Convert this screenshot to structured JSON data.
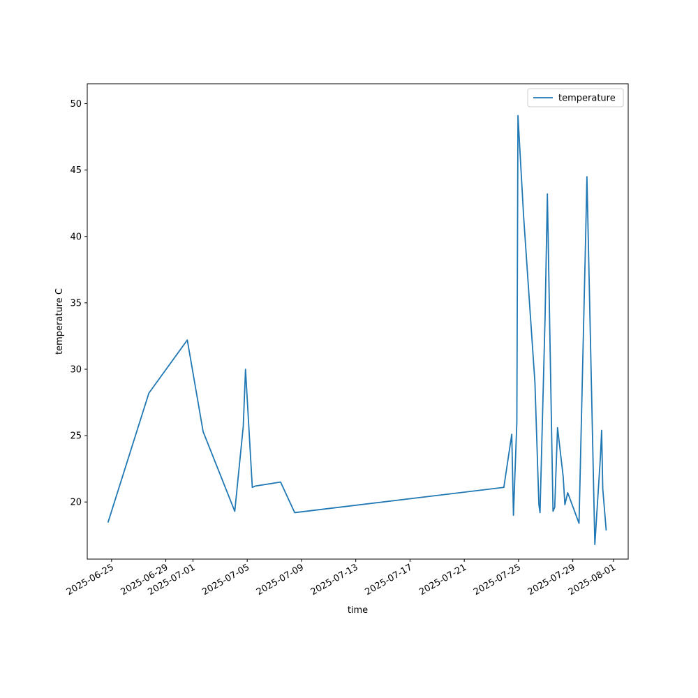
{
  "chart_data": {
    "type": "line",
    "title": "",
    "xlabel": "time",
    "ylabel": "temperature C",
    "x_tick_labels": [
      "2025-06-25",
      "2025-06-29",
      "2025-07-01",
      "2025-07-05",
      "2025-07-09",
      "2025-07-13",
      "2025-07-17",
      "2025-07-21",
      "2025-07-25",
      "2025-07-29",
      "2025-08-01"
    ],
    "x_ticks": [
      "2025-06-25",
      "2025-06-29",
      "2025-07-01",
      "2025-07-05",
      "2025-07-09",
      "2025-07-13",
      "2025-07-17",
      "2025-07-21",
      "2025-07-25",
      "2025-07-29",
      "2025-08-01"
    ],
    "xlim": [
      "2025-06-23T05:00",
      "2025-08-02T02:00"
    ],
    "ylim": [
      15.7,
      51.5
    ],
    "y_ticks": [
      20,
      25,
      30,
      35,
      40,
      45,
      50
    ],
    "legend": {
      "position": "top-right",
      "entries": [
        "temperature"
      ]
    },
    "colors": {
      "series": "#1f77b4"
    },
    "series": [
      {
        "name": "temperature",
        "points": [
          [
            "2025-06-24T18:00",
            18.5
          ],
          [
            "2025-06-27T18:00",
            28.2
          ],
          [
            "2025-06-30T14:00",
            32.2
          ],
          [
            "2025-07-01T18:00",
            25.3
          ],
          [
            "2025-07-04T02:00",
            19.3
          ],
          [
            "2025-07-04T17:00",
            25.7
          ],
          [
            "2025-07-04T21:00",
            30.0
          ],
          [
            "2025-07-05T09:00",
            21.1
          ],
          [
            "2025-07-05T14:00",
            21.2
          ],
          [
            "2025-07-07T11:00",
            21.5
          ],
          [
            "2025-07-08T12:00",
            19.2
          ],
          [
            "2025-07-23T22:00",
            21.1
          ],
          [
            "2025-07-24T12:00",
            25.1
          ],
          [
            "2025-07-24T15:00",
            19.0
          ],
          [
            "2025-07-24T21:00",
            26.0
          ],
          [
            "2025-07-24T23:00",
            49.1
          ],
          [
            "2025-07-25T09:00",
            41.5
          ],
          [
            "2025-07-26T05:00",
            29.0
          ],
          [
            "2025-07-26T12:00",
            19.8
          ],
          [
            "2025-07-26T14:00",
            19.2
          ],
          [
            "2025-07-26T23:00",
            34.0
          ],
          [
            "2025-07-27T03:00",
            43.2
          ],
          [
            "2025-07-27T13:00",
            19.3
          ],
          [
            "2025-07-27T16:00",
            19.6
          ],
          [
            "2025-07-27T21:00",
            25.6
          ],
          [
            "2025-07-28T07:00",
            21.9
          ],
          [
            "2025-07-28T10:00",
            19.8
          ],
          [
            "2025-07-28T15:00",
            20.7
          ],
          [
            "2025-07-29T11:00",
            18.4
          ],
          [
            "2025-07-29T23:00",
            40.5
          ],
          [
            "2025-07-30T01:00",
            44.5
          ],
          [
            "2025-07-30T15:00",
            16.8
          ],
          [
            "2025-07-31T01:00",
            23.5
          ],
          [
            "2025-07-31T03:00",
            25.4
          ],
          [
            "2025-07-31T05:00",
            21.0
          ],
          [
            "2025-07-31T11:00",
            17.9
          ]
        ]
      }
    ]
  }
}
